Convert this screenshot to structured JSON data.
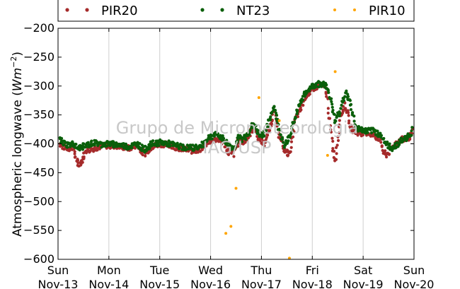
{
  "chart_data": {
    "type": "scatter",
    "title": "",
    "ylabel": "Atmospheric longwave ($Wm^{-2}$)",
    "ylabel_text": "Atmospheric longwave (",
    "ylabel_unit_base": "Wm",
    "ylabel_unit_exp": "−2",
    "ylabel_close": ")",
    "ylim": [
      -600,
      -200
    ],
    "yticks": [
      -200,
      -250,
      -300,
      -350,
      -400,
      -450,
      -500,
      -550,
      -600
    ],
    "ytick_labels": [
      "−200",
      "−250",
      "−300",
      "−350",
      "−400",
      "−450",
      "−500",
      "−550",
      "−600"
    ],
    "xlim": [
      "2016-11-13",
      "2016-11-20"
    ],
    "xticks_day": [
      "Sun",
      "Mon",
      "Tue",
      "Wed",
      "Thu",
      "Fri",
      "Sat",
      "Sun"
    ],
    "xticks_date": [
      "Nov-13",
      "Nov-14",
      "Nov-15",
      "Nov-16",
      "Nov-17",
      "Nov-18",
      "Nov-19",
      "Nov-20"
    ],
    "grid": "vertical",
    "legend_placement": "top",
    "watermark_lines": [
      "Grupo de Micrometeorologia",
      "IAG/USP"
    ],
    "series": [
      {
        "name": "PIR20",
        "color": "#a52a2a",
        "x": [
          0.0,
          0.1,
          0.2,
          0.3,
          0.35,
          0.4,
          0.45,
          0.55,
          0.7,
          0.85,
          1.0,
          1.2,
          1.4,
          1.55,
          1.7,
          1.85,
          2.0,
          2.2,
          2.4,
          2.6,
          2.8,
          2.95,
          3.05,
          3.15,
          3.25,
          3.35,
          3.45,
          3.55,
          3.65,
          3.75,
          3.85,
          3.95,
          4.05,
          4.15,
          4.25,
          4.35,
          4.45,
          4.55,
          4.6,
          4.65,
          4.75,
          4.85,
          4.95,
          5.05,
          5.15,
          5.25,
          5.3,
          5.35,
          5.4,
          5.45,
          5.55,
          5.65,
          5.75,
          5.85,
          5.95,
          6.05,
          6.15,
          6.25,
          6.35,
          6.4,
          6.45,
          6.55,
          6.65,
          6.75,
          6.85,
          6.95,
          7.0
        ],
        "y": [
          -398,
          -405,
          -408,
          -405,
          -425,
          -438,
          -432,
          -412,
          -408,
          -404,
          -403,
          -404,
          -408,
          -402,
          -418,
          -405,
          -400,
          -402,
          -408,
          -412,
          -410,
          -396,
          -393,
          -392,
          -398,
          -415,
          -418,
          -395,
          -398,
          -385,
          -370,
          -392,
          -400,
          -375,
          -345,
          -385,
          -412,
          -418,
          -395,
          -360,
          -345,
          -320,
          -310,
          -303,
          -300,
          -302,
          -325,
          -370,
          -405,
          -430,
          -355,
          -330,
          -372,
          -380,
          -382,
          -380,
          -383,
          -388,
          -392,
          -415,
          -420,
          -410,
          -398,
          -393,
          -392,
          -385,
          -370
        ]
      },
      {
        "name": "NT23",
        "color": "#0a5f0a",
        "x": [
          0.0,
          0.1,
          0.2,
          0.3,
          0.4,
          0.55,
          0.7,
          0.85,
          1.0,
          1.2,
          1.4,
          1.55,
          1.7,
          1.85,
          2.0,
          2.2,
          2.4,
          2.6,
          2.8,
          2.95,
          3.05,
          3.15,
          3.25,
          3.35,
          3.45,
          3.55,
          3.65,
          3.75,
          3.85,
          3.95,
          4.05,
          4.15,
          4.25,
          4.35,
          4.45,
          4.55,
          4.65,
          4.75,
          4.85,
          4.95,
          5.05,
          5.15,
          5.25,
          5.35,
          5.45,
          5.55,
          5.65,
          5.75,
          5.85,
          5.95,
          6.05,
          6.15,
          6.25,
          6.35,
          6.45,
          6.55,
          6.65,
          6.75,
          6.85,
          6.95,
          7.0
        ],
        "y": [
          -390,
          -398,
          -402,
          -400,
          -408,
          -403,
          -398,
          -401,
          -400,
          -402,
          -405,
          -400,
          -410,
          -400,
          -398,
          -400,
          -405,
          -407,
          -405,
          -390,
          -385,
          -385,
          -392,
          -402,
          -408,
          -390,
          -392,
          -380,
          -365,
          -385,
          -385,
          -360,
          -335,
          -375,
          -405,
          -385,
          -360,
          -330,
          -315,
          -303,
          -298,
          -296,
          -297,
          -318,
          -360,
          -345,
          -310,
          -330,
          -372,
          -375,
          -378,
          -377,
          -380,
          -385,
          -400,
          -408,
          -403,
          -395,
          -390,
          -380,
          -360
        ]
      },
      {
        "name": "PIR10",
        "color": "#ffa500",
        "x": [
          3.3,
          3.4,
          3.5,
          3.95,
          4.35,
          4.55,
          5.3,
          5.45
        ],
        "y": [
          -555,
          -543,
          -477,
          -320,
          -360,
          -598,
          -420,
          -275
        ]
      }
    ]
  }
}
